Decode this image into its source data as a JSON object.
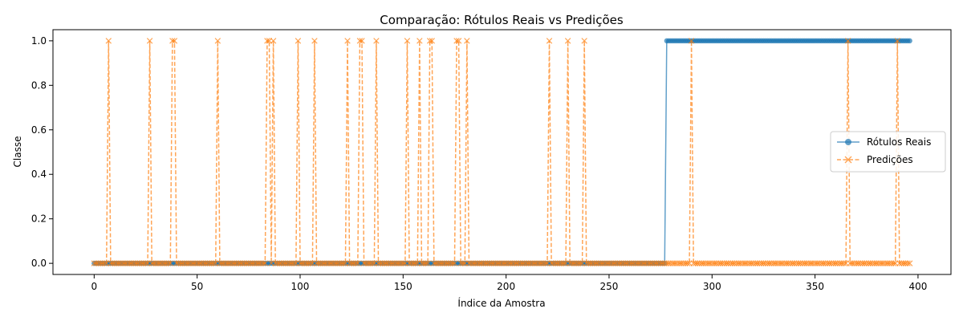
{
  "chart_data": {
    "type": "line",
    "title": "Comparação: Rótulos Reais vs Predições",
    "xlabel": "Índice da Amostra",
    "ylabel": "Classe",
    "xlim": [
      -20,
      416
    ],
    "ylim": [
      -0.05,
      1.05
    ],
    "xticks": [
      0,
      50,
      100,
      150,
      200,
      250,
      300,
      350,
      400
    ],
    "yticks": [
      0.0,
      0.2,
      0.4,
      0.6,
      0.8,
      1.0
    ],
    "xtick_labels": [
      "0",
      "50",
      "100",
      "150",
      "200",
      "250",
      "300",
      "350",
      "400"
    ],
    "ytick_labels": [
      "0.0",
      "0.2",
      "0.4",
      "0.6",
      "0.8",
      "1.0"
    ],
    "grid": false,
    "legend_position": "center-right",
    "n_samples": 397,
    "series": [
      {
        "name": "Rótulos Reais",
        "color": "#1f77b4",
        "marker": "circle",
        "linestyle": "solid",
        "segments": [
          {
            "x_start": 0,
            "x_end": 277,
            "value": 0
          },
          {
            "x_start": 278,
            "x_end": 396,
            "value": 1
          }
        ]
      },
      {
        "name": "Predições",
        "color": "#ff7f0e",
        "marker": "x",
        "linestyle": "dashed",
        "baseline_value": 0,
        "positive_indices": [
          7,
          27,
          38,
          39,
          60,
          84,
          85,
          87,
          99,
          107,
          123,
          129,
          130,
          137,
          152,
          158,
          163,
          164,
          176,
          177,
          181,
          221,
          230,
          238,
          290,
          366,
          390
        ]
      }
    ]
  }
}
